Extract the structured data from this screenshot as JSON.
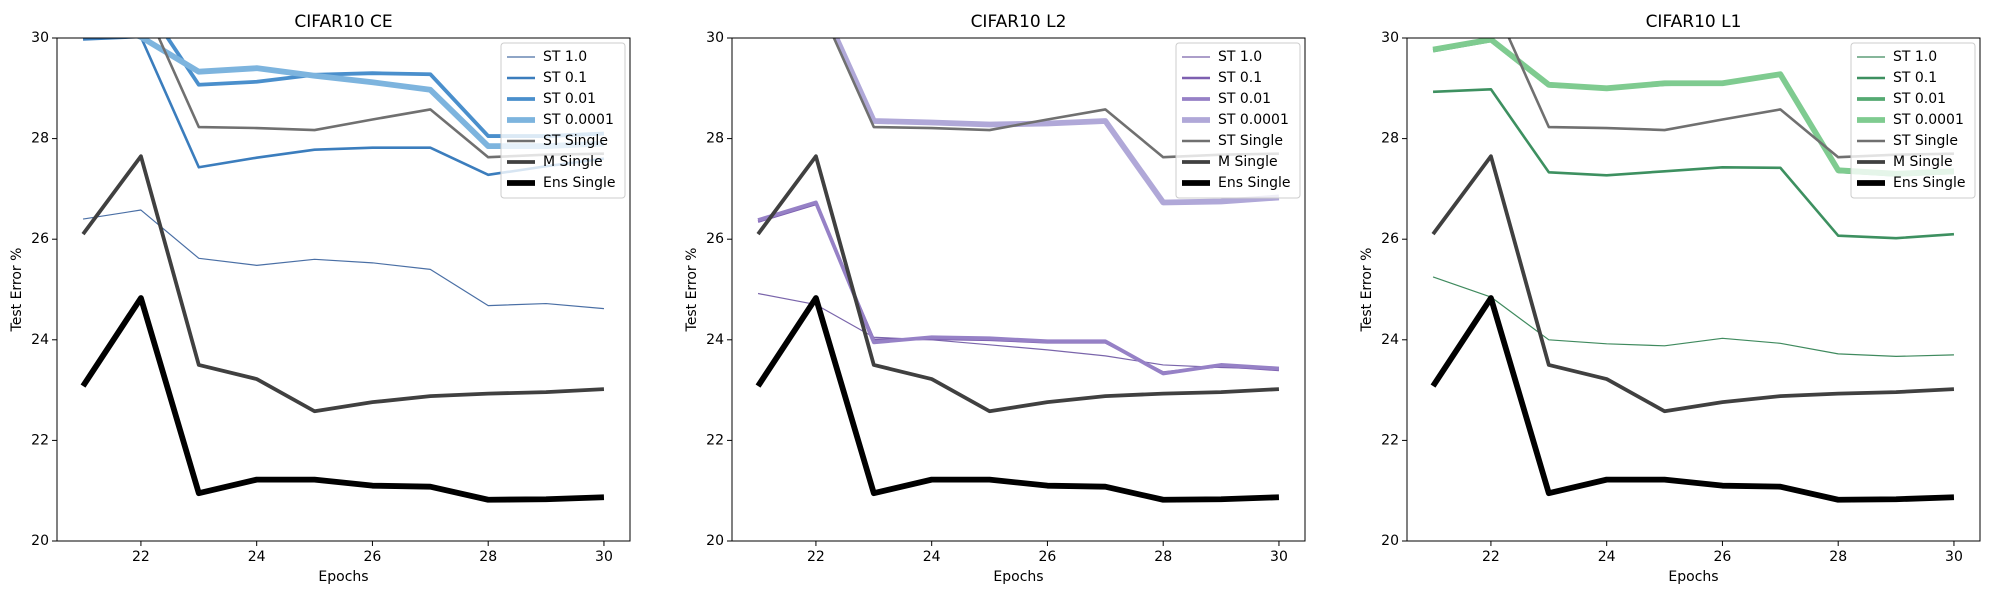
{
  "chart_data": [
    {
      "type": "line",
      "title": "CIFAR10 CE",
      "xlabel": "Epochs",
      "ylabel": "Test Error %",
      "x": [
        21,
        22,
        23,
        24,
        25,
        26,
        27,
        28,
        29,
        30
      ],
      "xlim": [
        20.55,
        30.45
      ],
      "ylim": [
        20,
        30
      ],
      "xticks": [
        22,
        24,
        26,
        28,
        30
      ],
      "yticks": [
        20,
        22,
        24,
        26,
        28,
        30
      ],
      "legend": "upper right",
      "series": [
        {
          "name": "ST 1.0",
          "color": "#4a6fa5",
          "width": 1.2,
          "values": [
            26.4,
            26.58,
            25.62,
            25.48,
            25.6,
            25.53,
            25.4,
            24.68,
            24.72,
            24.62
          ]
        },
        {
          "name": "ST 0.1",
          "color": "#3b7dbd",
          "width": 2.6,
          "values": [
            29.97,
            30.02,
            27.43,
            27.62,
            27.78,
            27.82,
            27.82,
            27.28,
            27.45,
            27.6
          ]
        },
        {
          "name": "ST 0.01",
          "color": "#4a8fcc",
          "width": 3.8,
          "values": [
            30.6,
            30.8,
            29.07,
            29.13,
            29.27,
            29.3,
            29.28,
            28.05,
            28.05,
            28.1
          ]
        },
        {
          "name": "ST 0.0001",
          "color": "#7db4de",
          "width": 5.8,
          "values": [
            30.5,
            30.02,
            29.33,
            29.4,
            29.25,
            29.12,
            28.97,
            27.85,
            27.85,
            27.9
          ]
        },
        {
          "name": "ST Single",
          "color": "#707070",
          "width": 2.6,
          "values": [
            31.0,
            30.8,
            28.23,
            28.21,
            28.17,
            28.38,
            28.58,
            27.63,
            27.68,
            27.7
          ]
        },
        {
          "name": "M Single",
          "color": "#404040",
          "width": 3.8,
          "values": [
            26.1,
            27.65,
            23.5,
            23.22,
            22.58,
            22.76,
            22.88,
            22.93,
            22.96,
            23.02
          ]
        },
        {
          "name": "Ens Single",
          "color": "#000000",
          "width": 5.8,
          "values": [
            23.08,
            24.83,
            20.95,
            21.22,
            21.22,
            21.1,
            21.08,
            20.82,
            20.83,
            20.87
          ]
        }
      ]
    },
    {
      "type": "line",
      "title": "CIFAR10 L2",
      "xlabel": "Epochs",
      "ylabel": "Test Error %",
      "x": [
        21,
        22,
        23,
        24,
        25,
        26,
        27,
        28,
        29,
        30
      ],
      "xlim": [
        20.55,
        30.45
      ],
      "ylim": [
        20,
        30
      ],
      "xticks": [
        22,
        24,
        26,
        28,
        30
      ],
      "yticks": [
        20,
        22,
        24,
        26,
        28,
        30
      ],
      "legend": "upper right",
      "series": [
        {
          "name": "ST 1.0",
          "color": "#7a65ab",
          "width": 1.2,
          "values": [
            24.92,
            24.7,
            24.05,
            24.0,
            23.9,
            23.8,
            23.68,
            23.5,
            23.45,
            23.42
          ]
        },
        {
          "name": "ST 0.1",
          "color": "#7d5fb0",
          "width": 2.6,
          "values": [
            26.35,
            26.7,
            24.0,
            24.02,
            24.0,
            23.95,
            23.95,
            23.35,
            23.48,
            23.4
          ]
        },
        {
          "name": "ST 0.01",
          "color": "#9681c6",
          "width": 3.8,
          "values": [
            26.38,
            26.73,
            23.95,
            24.05,
            24.03,
            23.97,
            23.97,
            23.33,
            23.5,
            23.43
          ]
        },
        {
          "name": "ST 0.0001",
          "color": "#b0a8d8",
          "width": 5.8,
          "values": [
            31.0,
            30.9,
            28.35,
            28.32,
            28.28,
            28.3,
            28.35,
            26.73,
            26.75,
            26.83
          ]
        },
        {
          "name": "ST Single",
          "color": "#707070",
          "width": 2.6,
          "values": [
            31.0,
            30.8,
            28.23,
            28.21,
            28.17,
            28.38,
            28.58,
            27.63,
            27.68,
            27.7
          ]
        },
        {
          "name": "M Single",
          "color": "#404040",
          "width": 3.8,
          "values": [
            26.1,
            27.65,
            23.5,
            23.22,
            22.58,
            22.76,
            22.88,
            22.93,
            22.96,
            23.02
          ]
        },
        {
          "name": "Ens Single",
          "color": "#000000",
          "width": 5.8,
          "values": [
            23.08,
            24.83,
            20.95,
            21.22,
            21.22,
            21.1,
            21.08,
            20.82,
            20.83,
            20.87
          ]
        }
      ]
    },
    {
      "type": "line",
      "title": "CIFAR10 L1",
      "xlabel": "Epochs",
      "ylabel": "Test Error %",
      "x": [
        21,
        22,
        23,
        24,
        25,
        26,
        27,
        28,
        29,
        30
      ],
      "xlim": [
        20.55,
        30.45
      ],
      "ylim": [
        20,
        30
      ],
      "xticks": [
        22,
        24,
        26,
        28,
        30
      ],
      "yticks": [
        20,
        22,
        24,
        26,
        28,
        30
      ],
      "legend": "upper right",
      "series": [
        {
          "name": "ST 1.0",
          "color": "#3f8a5e",
          "width": 1.2,
          "values": [
            25.25,
            24.85,
            24.0,
            23.92,
            23.88,
            24.03,
            23.93,
            23.72,
            23.67,
            23.7
          ]
        },
        {
          "name": "ST 0.1",
          "color": "#3d9060",
          "width": 2.6,
          "values": [
            28.93,
            28.98,
            27.33,
            27.27,
            27.35,
            27.43,
            27.42,
            26.07,
            26.02,
            26.1
          ]
        },
        {
          "name": "ST 0.01",
          "color": "#55aa72",
          "width": 3.8,
          "values": [
            29.75,
            29.95,
            29.05,
            29.0,
            29.08,
            29.1,
            29.27,
            27.35,
            27.28,
            27.33
          ]
        },
        {
          "name": "ST 0.0001",
          "color": "#7fcb90",
          "width": 5.8,
          "values": [
            29.77,
            29.97,
            29.07,
            29.0,
            29.1,
            29.1,
            29.28,
            27.37,
            27.3,
            27.35
          ]
        },
        {
          "name": "ST Single",
          "color": "#707070",
          "width": 2.6,
          "values": [
            31.0,
            30.8,
            28.23,
            28.21,
            28.17,
            28.38,
            28.58,
            27.63,
            27.68,
            27.7
          ]
        },
        {
          "name": "M Single",
          "color": "#404040",
          "width": 3.8,
          "values": [
            26.1,
            27.65,
            23.5,
            23.22,
            22.58,
            22.76,
            22.88,
            22.93,
            22.96,
            23.02
          ]
        },
        {
          "name": "Ens Single",
          "color": "#000000",
          "width": 5.8,
          "values": [
            23.08,
            24.83,
            20.95,
            21.22,
            21.22,
            21.1,
            21.08,
            20.82,
            20.83,
            20.87
          ]
        }
      ]
    }
  ]
}
